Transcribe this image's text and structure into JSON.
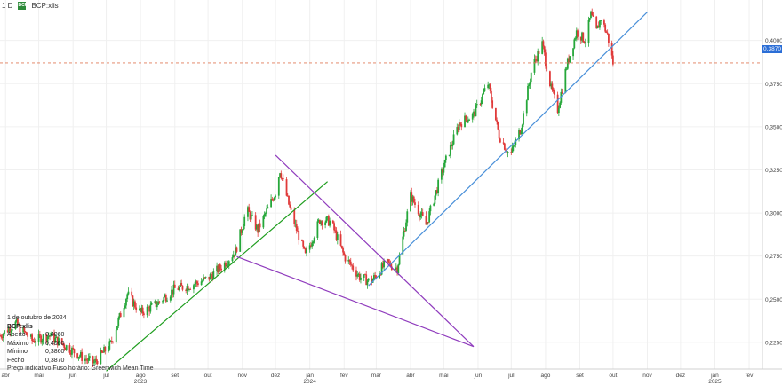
{
  "header": {
    "interval": "1 D",
    "symbol": "BCP:xlis",
    "logo_text": "BCP"
  },
  "info": {
    "date": "1 de outubro de 2024",
    "symbol": "BCP:xlis",
    "rows": [
      {
        "label": "Aberto",
        "value": "0,4060"
      },
      {
        "label": "Máximo",
        "value": "0,4060"
      },
      {
        "label": "Mínimo",
        "value": "0,3860"
      },
      {
        "label": "Fecho",
        "value": "0,3870"
      }
    ],
    "footer": "Preço indicativo    Fuso horário: Greenwich Mean Time"
  },
  "current_price_label": "0,3870",
  "chart_data": {
    "type": "candlestick",
    "y_axis": {
      "ticks": [
        "0,4000",
        "0,3750",
        "0,3500",
        "0,3250",
        "0,3000",
        "0,2750",
        "0,2500",
        "0,2250"
      ],
      "tick_values": [
        0.4,
        0.375,
        0.35,
        0.325,
        0.3,
        0.275,
        0.25,
        0.225
      ],
      "range": [
        0.2095,
        0.4235
      ]
    },
    "x_axis": {
      "labels": [
        "abr",
        "mai",
        "jun",
        "jul",
        "ago",
        "set",
        "out",
        "nov",
        "dez",
        "jan",
        "fev",
        "mar",
        "abr",
        "mai",
        "jun",
        "jul",
        "ago",
        "set",
        "out",
        "nov",
        "dez",
        "jan",
        "fev"
      ],
      "label_dates": [
        "2023-04-01",
        "2023-05-01",
        "2023-06-01",
        "2023-07-01",
        "2023-08-01",
        "2023-09-01",
        "2023-10-01",
        "2023-11-01",
        "2023-12-01",
        "2024-01-01",
        "2024-02-01",
        "2024-03-01",
        "2024-04-01",
        "2024-05-01",
        "2024-06-01",
        "2024-07-01",
        "2024-08-01",
        "2024-09-01",
        "2024-10-01",
        "2024-11-01",
        "2024-12-01",
        "2025-01-01",
        "2025-02-01"
      ],
      "years": [
        {
          "label": "2023",
          "date": "2023-01-01"
        },
        {
          "label": "2024",
          "date": "2024-01-01"
        },
        {
          "label": "2025",
          "date": "2025-01-01"
        }
      ],
      "range": [
        "2023-03-27",
        "2025-02-13"
      ]
    },
    "current_price": 0.387,
    "up_color": "#26a73a",
    "down_color": "#e03a3a",
    "price_path": [
      [
        "2023-03-27",
        0.229
      ],
      [
        "2023-04-10",
        0.236
      ],
      [
        "2023-04-25",
        0.226
      ],
      [
        "2023-05-10",
        0.229
      ],
      [
        "2023-05-25",
        0.223
      ],
      [
        "2023-06-10",
        0.216
      ],
      [
        "2023-06-20",
        0.213
      ],
      [
        "2023-07-05",
        0.224
      ],
      [
        "2023-07-20",
        0.253
      ],
      [
        "2023-08-01",
        0.242
      ],
      [
        "2023-08-15",
        0.247
      ],
      [
        "2023-09-01",
        0.256
      ],
      [
        "2023-09-15",
        0.258
      ],
      [
        "2023-10-01",
        0.262
      ],
      [
        "2023-10-15",
        0.27
      ],
      [
        "2023-10-26",
        0.278
      ],
      [
        "2023-11-05",
        0.302
      ],
      [
        "2023-11-15",
        0.29
      ],
      [
        "2023-12-01",
        0.312
      ],
      [
        "2023-12-05",
        0.325
      ],
      [
        "2023-12-15",
        0.3
      ],
      [
        "2023-12-28",
        0.275
      ],
      [
        "2024-01-10",
        0.296
      ],
      [
        "2024-01-20",
        0.295
      ],
      [
        "2024-02-01",
        0.275
      ],
      [
        "2024-02-15",
        0.263
      ],
      [
        "2024-02-25",
        0.26
      ],
      [
        "2024-03-10",
        0.271
      ],
      [
        "2024-03-20",
        0.268
      ],
      [
        "2024-04-01",
        0.31
      ],
      [
        "2024-04-15",
        0.293
      ],
      [
        "2024-05-01",
        0.327
      ],
      [
        "2024-05-15",
        0.352
      ],
      [
        "2024-05-28",
        0.357
      ],
      [
        "2024-06-10",
        0.375
      ],
      [
        "2024-06-20",
        0.345
      ],
      [
        "2024-06-30",
        0.333
      ],
      [
        "2024-07-10",
        0.35
      ],
      [
        "2024-07-20",
        0.385
      ],
      [
        "2024-07-29",
        0.398
      ],
      [
        "2024-08-06",
        0.372
      ],
      [
        "2024-08-12",
        0.36
      ],
      [
        "2024-08-20",
        0.385
      ],
      [
        "2024-08-29",
        0.405
      ],
      [
        "2024-09-06",
        0.4
      ],
      [
        "2024-09-11",
        0.415
      ],
      [
        "2024-09-16",
        0.405
      ],
      [
        "2024-09-20",
        0.413
      ],
      [
        "2024-09-26",
        0.403
      ],
      [
        "2024-10-01",
        0.387
      ]
    ],
    "trendlines": [
      {
        "color": "#1e9d1e",
        "from": [
          "2023-07-01",
          0.2083
        ],
        "to": [
          "2024-01-17",
          0.3182
        ]
      },
      {
        "color": "#4a90d9",
        "from": [
          "2024-02-23",
          0.2578
        ],
        "to": [
          "2024-11-01",
          0.4165
        ]
      },
      {
        "color": "#8f3bbd",
        "from": [
          "2023-12-01",
          0.3335
        ],
        "to": [
          "2024-05-28",
          0.2225
        ]
      },
      {
        "color": "#8f3bbd",
        "from": [
          "2023-10-27",
          0.2747
        ],
        "to": [
          "2024-05-28",
          0.2225
        ]
      }
    ]
  }
}
